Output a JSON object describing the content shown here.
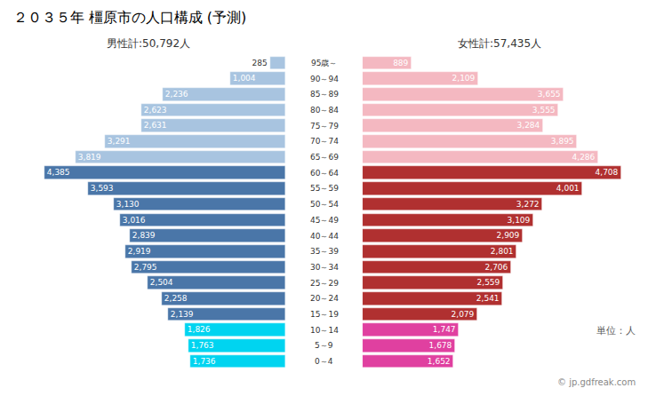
{
  "chart_data": {
    "type": "bar",
    "orientation": "horizontal",
    "title": "２０３５年 橿原市の人口構成 (予測)",
    "categories": [
      "0～4",
      "5～9",
      "10～14",
      "15～19",
      "20～24",
      "25～29",
      "30～34",
      "35～39",
      "40～44",
      "45～49",
      "50～54",
      "55～59",
      "60～64",
      "65～69",
      "70～74",
      "75～79",
      "80～84",
      "85～89",
      "90～94",
      "95歳～"
    ],
    "series": [
      {
        "name": "男性計:50,792人",
        "values": [
          1736,
          1763,
          1826,
          2139,
          2258,
          2504,
          2795,
          2919,
          2839,
          3016,
          3130,
          3593,
          4385,
          3819,
          3291,
          2631,
          2623,
          2236,
          1004,
          285
        ],
        "value_labels": [
          "1,736",
          "1,763",
          "1,826",
          "2,139",
          "2,258",
          "2,504",
          "2,795",
          "2,919",
          "2,839",
          "3,016",
          "3,130",
          "3,593",
          "4,385",
          "3,819",
          "3,291",
          "2,631",
          "2,623",
          "2,236",
          "1,004",
          "285"
        ],
        "colors": [
          "#00d4f0",
          "#00d4f0",
          "#00d4f0",
          "#4a76a8",
          "#4a76a8",
          "#4a76a8",
          "#4a76a8",
          "#4a76a8",
          "#4a76a8",
          "#4a76a8",
          "#4a76a8",
          "#4a76a8",
          "#4a76a8",
          "#a8c4e0",
          "#a8c4e0",
          "#a8c4e0",
          "#a8c4e0",
          "#a8c4e0",
          "#a8c4e0",
          "#a8c4e0"
        ]
      },
      {
        "name": "女性計:57,435人",
        "values": [
          1652,
          1678,
          1747,
          2079,
          2541,
          2559,
          2706,
          2801,
          2909,
          3109,
          3272,
          4001,
          4708,
          4286,
          3895,
          3284,
          3555,
          3655,
          2109,
          889
        ],
        "value_labels": [
          "1,652",
          "1,678",
          "1,747",
          "2,079",
          "2,541",
          "2,559",
          "2,706",
          "2,801",
          "2,909",
          "3,109",
          "3,272",
          "4,001",
          "4,708",
          "4,286",
          "3,895",
          "3,284",
          "3,555",
          "3,655",
          "2,109",
          "889"
        ],
        "colors": [
          "#e040a0",
          "#e040a0",
          "#e040a0",
          "#b03030",
          "#b03030",
          "#b03030",
          "#b03030",
          "#b03030",
          "#b03030",
          "#b03030",
          "#b03030",
          "#b03030",
          "#b03030",
          "#f4b8c1",
          "#f4b8c1",
          "#f4b8c1",
          "#f4b8c1",
          "#f4b8c1",
          "#f4b8c1",
          "#f4b8c1"
        ]
      }
    ],
    "xlim": [
      0,
      5000
    ],
    "data_labels": true,
    "tick_labels": false,
    "grid": false,
    "annotations": [
      "単位：人",
      "© jp.gdfreak.com"
    ]
  }
}
